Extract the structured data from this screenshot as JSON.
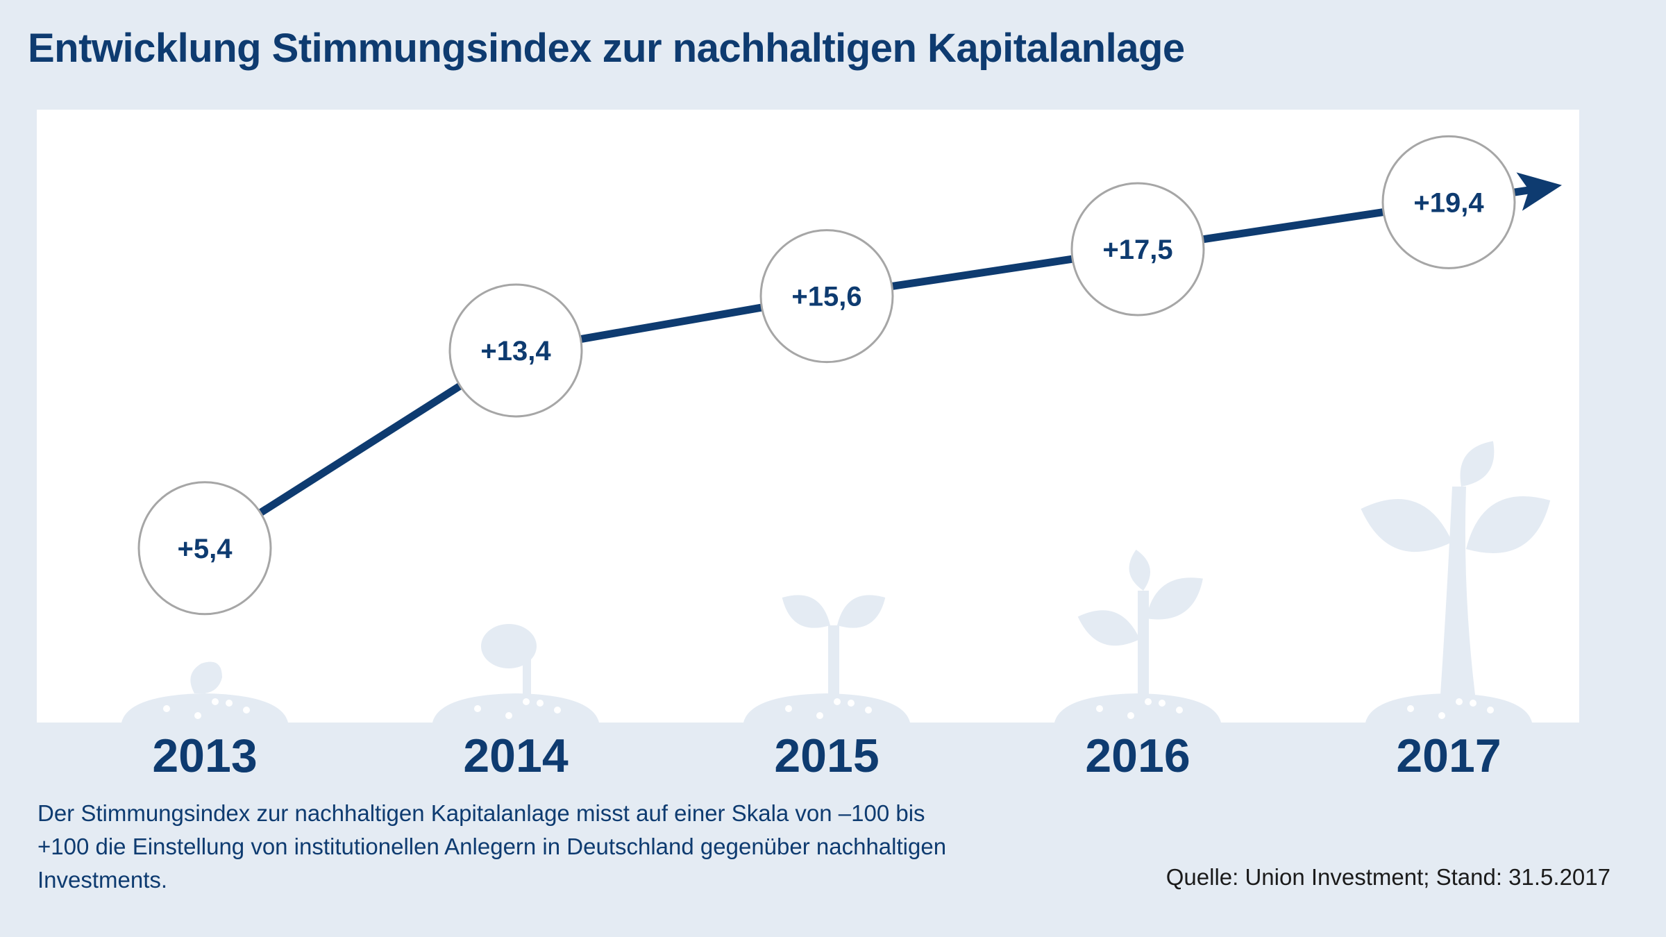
{
  "title": "Entwicklung Stimmungsindex zur nachhaltigen Kapitalanlage",
  "description": "Der Stimmungsindex zur nachhaltigen Kapitalanlage misst auf einer Skala von –100 bis +100 die Einstellung von institutionellen Anlegern in Deutschland gegenüber nachhaltigen Investments.",
  "source": "Quelle: Union Investment; Stand: 31.5.2017",
  "colors": {
    "background": "#e4ebf3",
    "panel": "#ffffff",
    "line": "#0e3b70",
    "text": "#0e3b70",
    "circle_stroke": "#a6a6a6",
    "plant": "#e4ebf3"
  },
  "icons": [
    "seed-icon",
    "sprout-icon",
    "seedling-icon",
    "young-plant-icon",
    "plant-icon"
  ],
  "chart_data": {
    "type": "line",
    "title": "Entwicklung Stimmungsindex zur nachhaltigen Kapitalanlage",
    "categories": [
      "2013",
      "2014",
      "2015",
      "2016",
      "2017"
    ],
    "values": [
      5.4,
      13.4,
      15.6,
      17.5,
      19.4
    ],
    "value_labels": [
      "+5,4",
      "+13,4",
      "+15,6",
      "+17,5",
      "+19,4"
    ],
    "xlabel": "",
    "ylabel": "",
    "scale": [
      -100,
      100
    ],
    "grid": false,
    "legend": "none",
    "end_marker": "arrow"
  }
}
